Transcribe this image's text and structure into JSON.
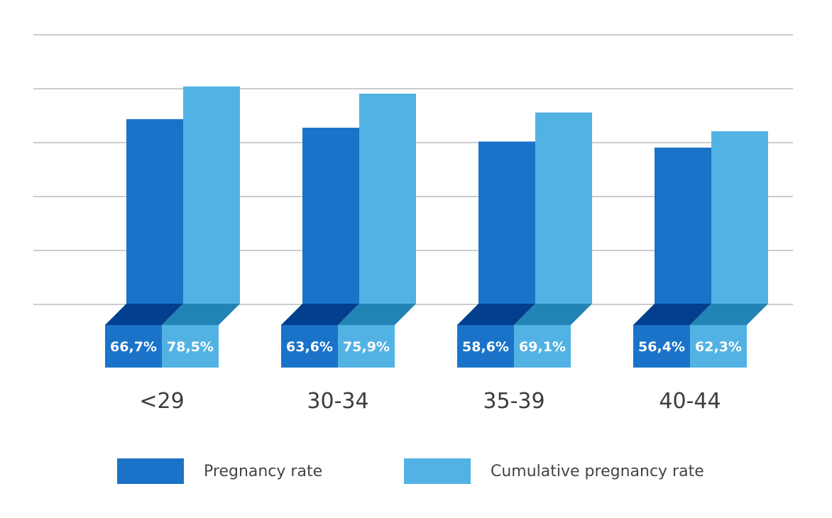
{
  "chart_data": {
    "type": "bar",
    "categories": [
      "<29",
      "30-34",
      "35-39",
      "40-44"
    ],
    "series": [
      {
        "name": "Pregnancy rate",
        "values": [
          66.7,
          63.6,
          58.6,
          56.4
        ],
        "labels": [
          "66,7%",
          "63,6%",
          "58,6%",
          "56,4%"
        ],
        "color": "#1a73c9"
      },
      {
        "name": "Cumulative pregnancy rate",
        "values": [
          78.5,
          75.9,
          69.1,
          62.3
        ],
        "labels": [
          "78,5%",
          "75,9%",
          "69,1%",
          "62,3%"
        ],
        "color": "#52b2e4"
      }
    ],
    "ylim": [
      0,
      100
    ],
    "grid": true,
    "legend": "bottom",
    "title": "",
    "xlabel": "",
    "ylabel": ""
  },
  "colors": {
    "pregnancy_dark_3d": "#023f8e",
    "cumulative_dark_3d": "#2283b5",
    "gridline": "#9a9a9a",
    "label_text": "#ffffff"
  }
}
